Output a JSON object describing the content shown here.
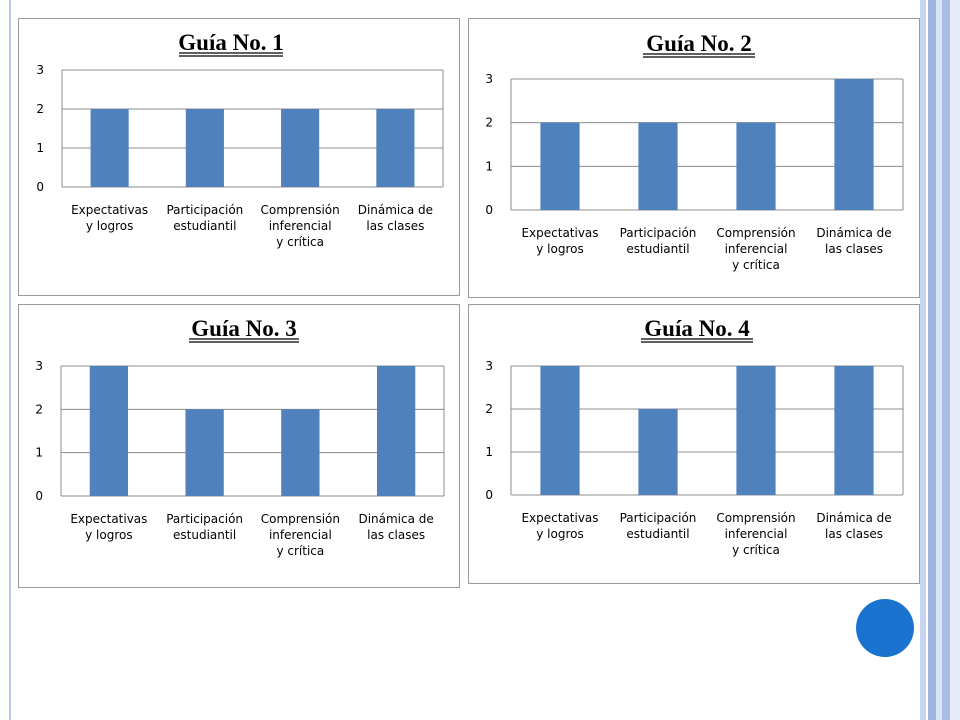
{
  "chart_data": [
    {
      "type": "bar",
      "title": "Guía No. 1",
      "categories": [
        "Expectativas y logros",
        "Participación estudiantil",
        "Comprensión inferencial y crítica",
        "Dinámica de las clases"
      ],
      "category_lines": [
        [
          "Expectativas",
          "y logros"
        ],
        [
          "Participación",
          "estudiantil"
        ],
        [
          "Comprensión",
          "inferencial",
          "y crítica"
        ],
        [
          "Dinámica de",
          "las clases"
        ]
      ],
      "values": [
        2,
        2,
        2,
        2
      ],
      "yticks": [
        "0",
        "1",
        "2",
        "3"
      ],
      "ylim": [
        0,
        3
      ],
      "grid": true,
      "legend": "none",
      "bar_color": "#4f81bd"
    },
    {
      "type": "bar",
      "title": "Guía No. 2",
      "categories": [
        "Expectativas y logros",
        "Participación estudiantil",
        "Comprensión inferencial y crítica",
        "Dinámica de las clases"
      ],
      "category_lines": [
        [
          "Expectativas",
          "y logros"
        ],
        [
          "Participación",
          "estudiantil"
        ],
        [
          "Comprensión",
          "inferencial",
          "y crítica"
        ],
        [
          "Dinámica de",
          "las clases"
        ]
      ],
      "values": [
        2,
        2,
        2,
        3
      ],
      "yticks": [
        "0",
        "1",
        "2",
        "3"
      ],
      "ylim": [
        0,
        3
      ],
      "grid": true,
      "legend": "none",
      "bar_color": "#4f81bd"
    },
    {
      "type": "bar",
      "title": "Guía No. 3",
      "categories": [
        "Expectativas y logros",
        "Participación estudiantil",
        "Comprensión inferencial y crítica",
        "Dinámica de las clases"
      ],
      "category_lines": [
        [
          "Expectativas",
          "y logros"
        ],
        [
          "Participación",
          "estudiantil"
        ],
        [
          "Comprensión",
          "inferencial",
          "y crítica"
        ],
        [
          "Dinámica de",
          "las clases"
        ]
      ],
      "values": [
        3,
        2,
        2,
        3
      ],
      "yticks": [
        "0",
        "1",
        "2",
        "3"
      ],
      "ylim": [
        0,
        3
      ],
      "grid": true,
      "legend": "none",
      "bar_color": "#4f81bd"
    },
    {
      "type": "bar",
      "title": "Guía No. 4",
      "categories": [
        "Expectativas y logros",
        "Participación estudiantil",
        "Comprensión inferencial y crítica",
        "Dinámica de las clases"
      ],
      "category_lines": [
        [
          "Expectativas",
          "y logros"
        ],
        [
          "Participación",
          "estudiantil"
        ],
        [
          "Comprensión",
          "inferencial",
          "y crítica"
        ],
        [
          "Dinámica de",
          "las clases"
        ]
      ],
      "values": [
        3,
        2,
        3,
        3
      ],
      "yticks": [
        "0",
        "1",
        "2",
        "3"
      ],
      "ylim": [
        0,
        3
      ],
      "grid": true,
      "legend": "none",
      "bar_color": "#4f81bd"
    }
  ],
  "decor": {
    "circle_color": "#1a74cf",
    "frame_color": "#9eb4df"
  }
}
